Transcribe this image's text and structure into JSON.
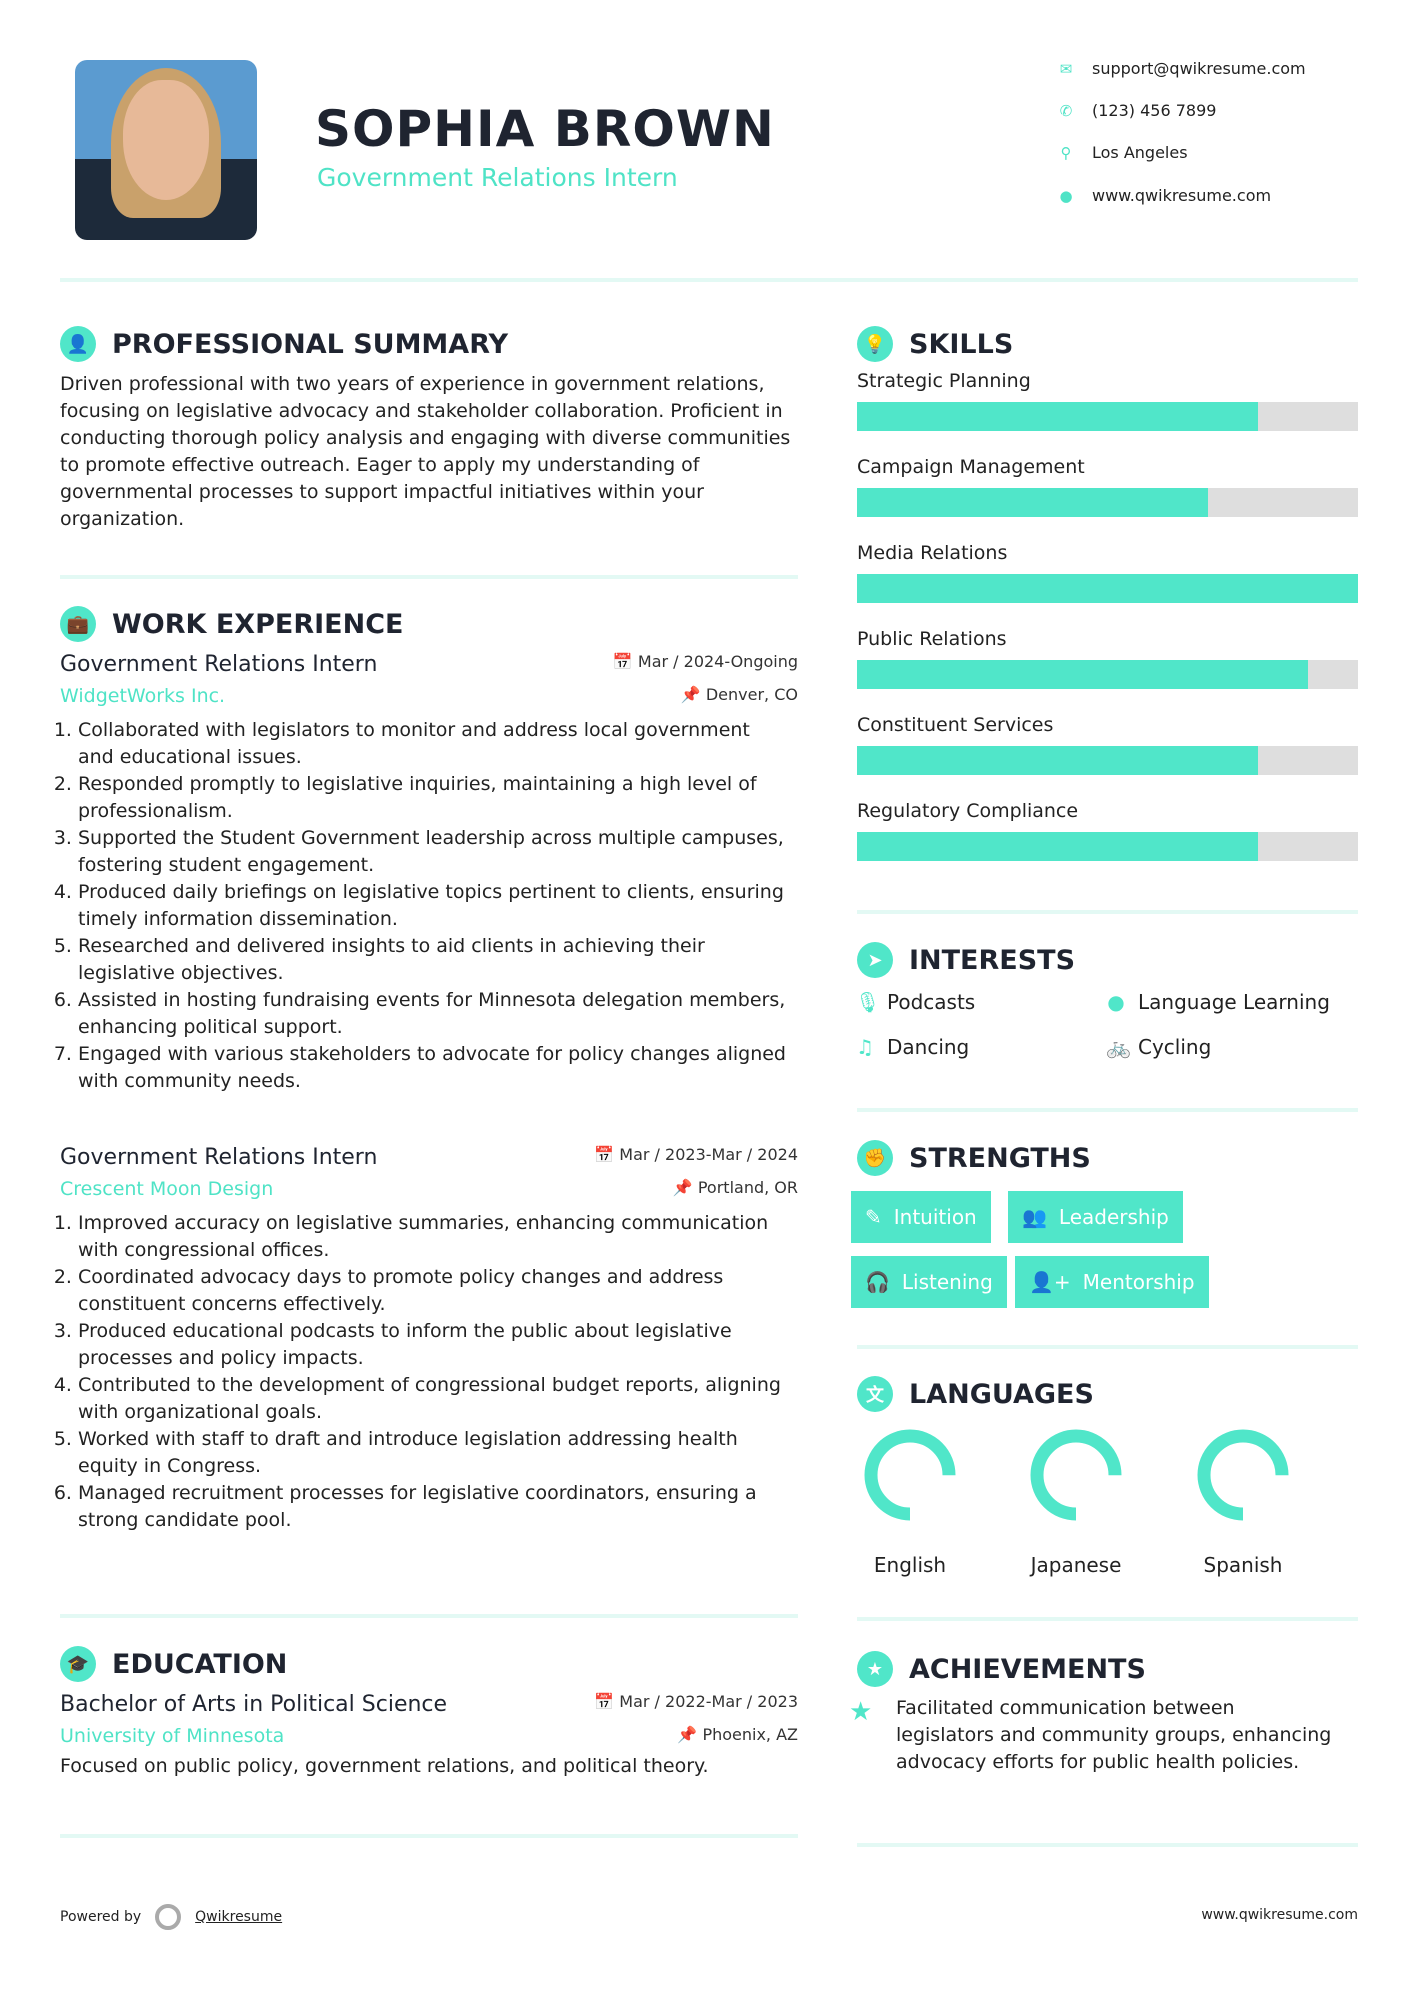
{
  "header": {
    "name": "SOPHIA BROWN",
    "title": "Government Relations Intern",
    "contacts": [
      {
        "icon": "envelope-icon",
        "text": "support@qwikresume.com"
      },
      {
        "icon": "phone-icon",
        "text": "(123) 456 7899"
      },
      {
        "icon": "map-pin-icon",
        "text": "Los Angeles"
      },
      {
        "icon": "globe-icon",
        "text": "www.qwikresume.com"
      }
    ]
  },
  "summary": {
    "heading": "PROFESSIONAL SUMMARY",
    "text": "Driven professional with two years of experience in government relations, focusing on legislative advocacy and stakeholder collaboration. Proficient in conducting thorough policy analysis and engaging with diverse communities to promote effective outreach. Eager to apply my understanding of governmental processes to support impactful initiatives within your organization."
  },
  "work": {
    "heading": "WORK EXPERIENCE",
    "jobs": [
      {
        "title": "Government Relations Intern",
        "company": "WidgetWorks Inc.",
        "dates": "Mar / 2024-Ongoing",
        "location": "Denver, CO",
        "bullets": [
          "Collaborated with legislators to monitor and address local government and educational issues.",
          "Responded promptly to legislative inquiries, maintaining a high level of professionalism.",
          "Supported the Student Government leadership across multiple campuses, fostering student engagement.",
          "Produced daily briefings on legislative topics pertinent to clients, ensuring timely information dissemination.",
          "Researched and delivered insights to aid clients in achieving their legislative objectives.",
          "Assisted in hosting fundraising events for Minnesota delegation members, enhancing political support.",
          "Engaged with various stakeholders to advocate for policy changes aligned with community needs."
        ]
      },
      {
        "title": "Government Relations Intern",
        "company": "Crescent Moon Design",
        "dates": "Mar / 2023-Mar / 2024",
        "location": "Portland, OR",
        "bullets": [
          "Improved accuracy on legislative summaries, enhancing communication with congressional offices.",
          "Coordinated advocacy days to promote policy changes and address constituent concerns effectively.",
          "Produced educational podcasts to inform the public about legislative processes and policy impacts.",
          "Contributed to the development of congressional budget reports, aligning with organizational goals.",
          "Worked with staff to draft and introduce legislation addressing health equity in Congress.",
          "Managed recruitment processes for legislative coordinators, ensuring a strong candidate pool."
        ]
      }
    ]
  },
  "education": {
    "heading": "EDUCATION",
    "degree": "Bachelor of Arts in Political Science",
    "school": "University of Minnesota",
    "dates": "Mar / 2022-Mar / 2023",
    "location": "Phoenix, AZ",
    "description": "Focused on public policy, government relations, and political theory."
  },
  "skills": {
    "heading": "SKILLS",
    "items": [
      {
        "label": "Strategic Planning",
        "level": 80
      },
      {
        "label": "Campaign Management",
        "level": 70
      },
      {
        "label": "Media Relations",
        "level": 100
      },
      {
        "label": "Public Relations",
        "level": 90
      },
      {
        "label": "Constituent Services",
        "level": 80
      },
      {
        "label": "Regulatory Compliance",
        "level": 80
      }
    ]
  },
  "interests": {
    "heading": "INTERESTS",
    "items": [
      {
        "icon": "microphone-icon",
        "label": "Podcasts"
      },
      {
        "icon": "globe-icon",
        "label": "Language Learning"
      },
      {
        "icon": "music-icon",
        "label": "Dancing"
      },
      {
        "icon": "bicycle-icon",
        "label": "Cycling"
      }
    ]
  },
  "strengths": {
    "heading": "STRENGTHS",
    "items": [
      {
        "icon": "magic-wand-icon",
        "label": "Intuition"
      },
      {
        "icon": "users-icon",
        "label": "Leadership"
      },
      {
        "icon": "headphones-icon",
        "label": "Listening"
      },
      {
        "icon": "user-plus-icon",
        "label": "Mentorship"
      }
    ]
  },
  "languages": {
    "heading": "LANGUAGES",
    "items": [
      {
        "label": "English",
        "level": 75
      },
      {
        "label": "Japanese",
        "level": 75
      },
      {
        "label": "Spanish",
        "level": 75
      }
    ]
  },
  "achievements": {
    "heading": "ACHIEVEMENTS",
    "items": [
      "Facilitated communication between legislators and community groups, enhancing advocacy efforts for public health policies."
    ]
  },
  "footer": {
    "powered_by": "Powered by",
    "brand": "Qwikresume",
    "website": "www.qwikresume.com"
  },
  "colors": {
    "accent": "#50e6c9",
    "text": "#1f2430",
    "bar_track": "#dedede",
    "divider": "#e3f9f4"
  }
}
